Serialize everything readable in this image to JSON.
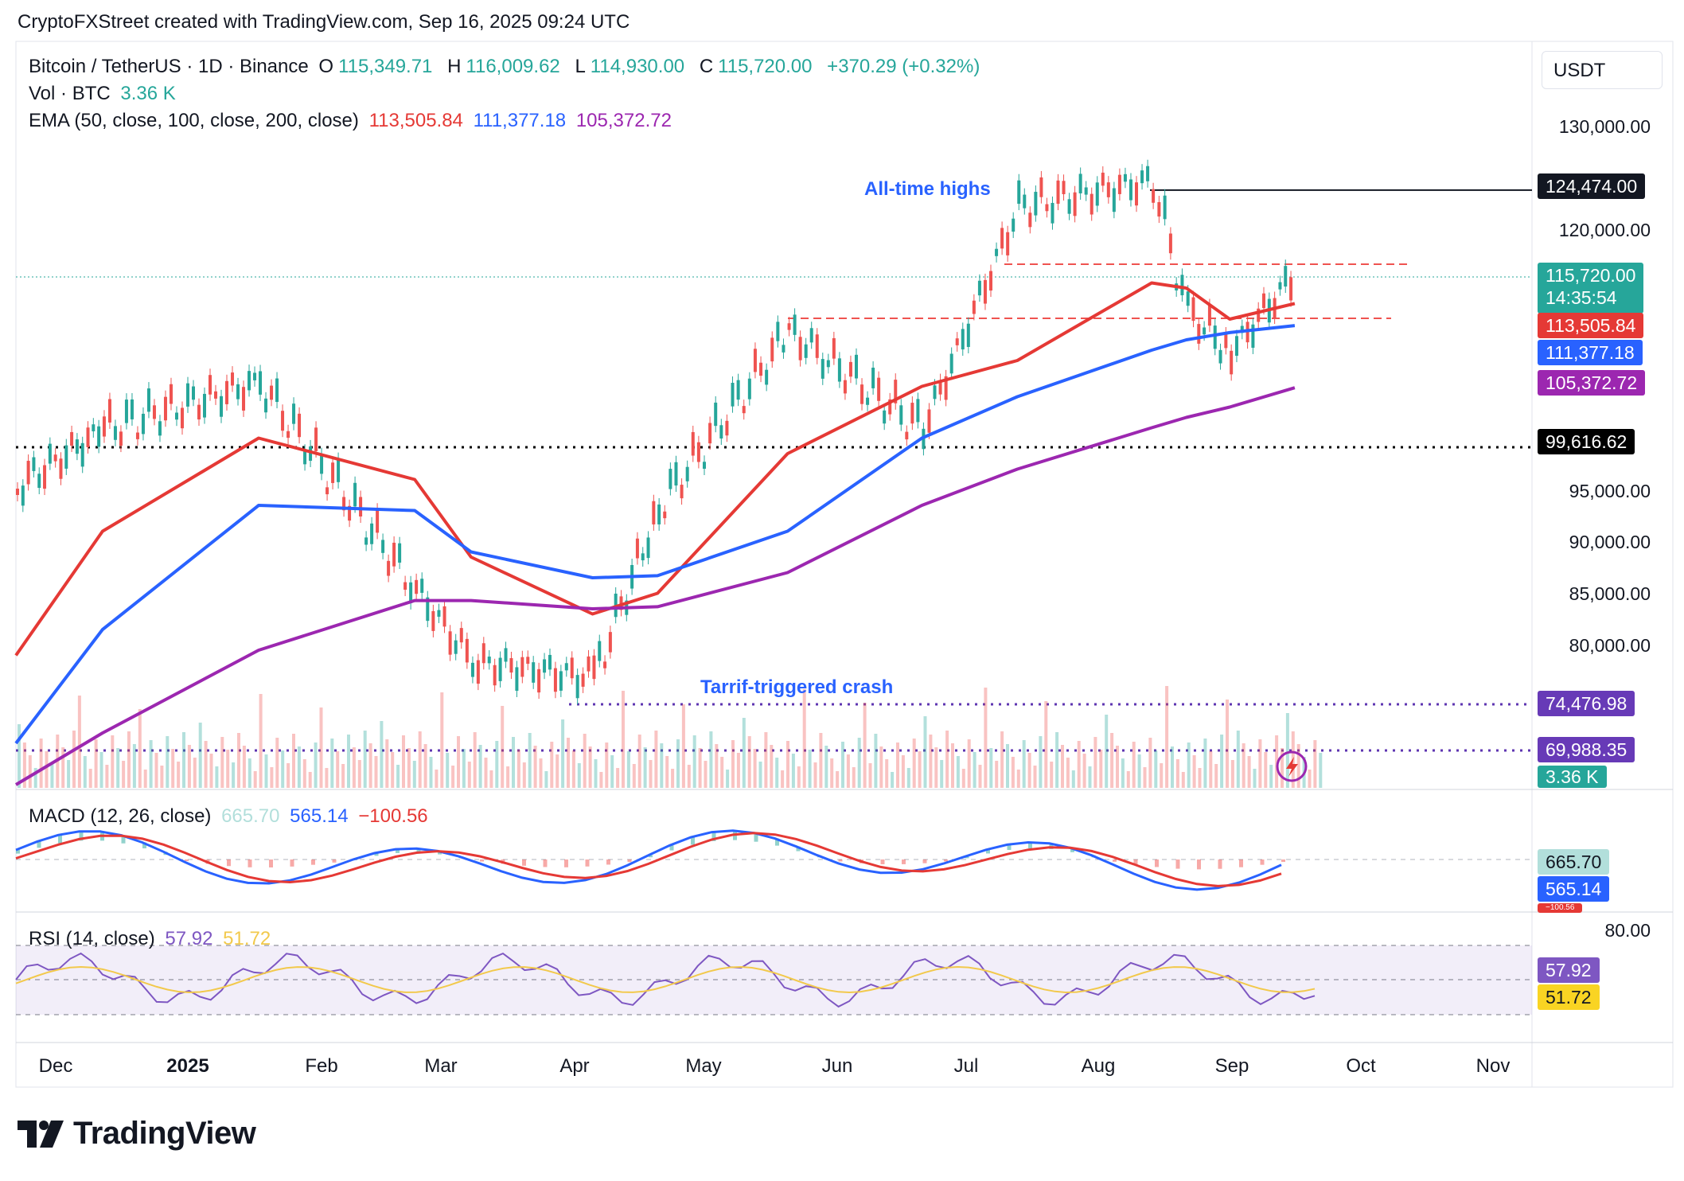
{
  "header": {
    "title": "CryptoFXStreet created with TradingView.com, Sep 16, 2025 09:24 UTC"
  },
  "legend": {
    "symbol": "Bitcoin / TetherUS · 1D · Binance",
    "o_label": "O",
    "o": "115,349.71",
    "h_label": "H",
    "h": "116,009.62",
    "l_label": "L",
    "l": "114,930.00",
    "c_label": "C",
    "c": "115,720.00",
    "change": "+370.29 (+0.32%)",
    "vol_label": "Vol · BTC",
    "vol": "3.36 K",
    "ema_label": "EMA (50, close, 100, close, 200, close)",
    "ema50": "113,505.84",
    "ema100": "111,377.18",
    "ema200": "105,372.72",
    "macd_label": "MACD (12, 26, close)",
    "macd_hist": "665.70",
    "macd_line": "565.14",
    "macd_signal": "−100.56",
    "rsi_label": "RSI (14, close)",
    "rsi": "57.92",
    "rsi_ma": "51.72"
  },
  "currency": "USDT",
  "price_axis": [
    "130,000.00",
    "120,000.00",
    "95,000.00",
    "90,000.00",
    "85,000.00",
    "80,000.00"
  ],
  "rsi_axis": [
    "80.00"
  ],
  "price_tags": {
    "ath": "124,474.00",
    "last": "115,720.00",
    "countdown": "14:35:54",
    "ema50": "113,505.84",
    "ema100": "111,377.18",
    "ema200": "105,372.72",
    "support": "99,616.62",
    "crash_low": "74,476.98",
    "low2": "69,988.35",
    "volume": "3.36 K",
    "macd_hist": "665.70",
    "macd_line": "565.14",
    "macd_signal": "−100.56",
    "rsi": "57.92",
    "rsi_ma": "51.72"
  },
  "annotations": {
    "ath": "All-time highs",
    "crash": "Tarrif-triggered crash"
  },
  "months": [
    "Dec",
    "2025",
    "Feb",
    "Mar",
    "Apr",
    "May",
    "Jun",
    "Jul",
    "Aug",
    "Sep",
    "Oct",
    "Nov"
  ],
  "colors": {
    "up": "#26a69a",
    "down": "#ef5350",
    "ema50": "#e53935",
    "ema100": "#2962ff",
    "ema200": "#9c27b0",
    "support": "#000000",
    "crash_line": "#5e35b1"
  },
  "logo": "TradingView",
  "chart_data": {
    "type": "line",
    "title": "Bitcoin / TetherUS · 1D · Binance",
    "x": [
      "2024-11-25",
      "2024-12-15",
      "2025-01-20",
      "2025-02-25",
      "2025-03-10",
      "2025-04-07",
      "2025-04-22",
      "2025-05-22",
      "2025-06-22",
      "2025-07-14",
      "2025-08-14",
      "2025-08-22",
      "2025-09-01",
      "2025-09-16"
    ],
    "series": [
      {
        "name": "Price (close)",
        "values": [
          95000,
          100500,
          105000,
          85000,
          78000,
          76500,
          93000,
          110000,
          100500,
          122000,
          124474,
          112000,
          108000,
          115720
        ]
      },
      {
        "name": "EMA 50",
        "values": [
          79500,
          91500,
          100500,
          96500,
          89000,
          83500,
          85500,
          99000,
          105500,
          108000,
          115500,
          115000,
          112000,
          113505.84
        ]
      },
      {
        "name": "EMA 100",
        "values": [
          71000,
          82000,
          94000,
          93500,
          89500,
          87000,
          87200,
          91500,
          100500,
          104500,
          109000,
          110000,
          110700,
          111377.18
        ]
      },
      {
        "name": "EMA 200",
        "values": [
          67000,
          72000,
          80000,
          84800,
          84800,
          84000,
          84200,
          87500,
          94000,
          97500,
          101500,
          102500,
          103500,
          105372.72
        ]
      }
    ],
    "ohlc_last": {
      "open": 115349.71,
      "high": 116009.62,
      "low": 114930.0,
      "close": 115720.0
    },
    "volume_last": "3.36 K",
    "levels": [
      {
        "label": "All-time highs",
        "value": 124474.0
      },
      {
        "value": 99616.62
      },
      {
        "label": "Tarrif-triggered crash",
        "value": 74476.98
      },
      {
        "value": 69988.35
      }
    ],
    "macd": {
      "histogram": 665.7,
      "macd": 565.14,
      "signal": -100.56
    },
    "rsi": {
      "rsi": 57.92,
      "ma": 51.72,
      "bands": [
        70,
        30
      ],
      "axis_label": 80
    },
    "xlabel": "",
    "ylabel": "USDT",
    "ylim": [
      68000,
      132000
    ],
    "grid": false
  }
}
